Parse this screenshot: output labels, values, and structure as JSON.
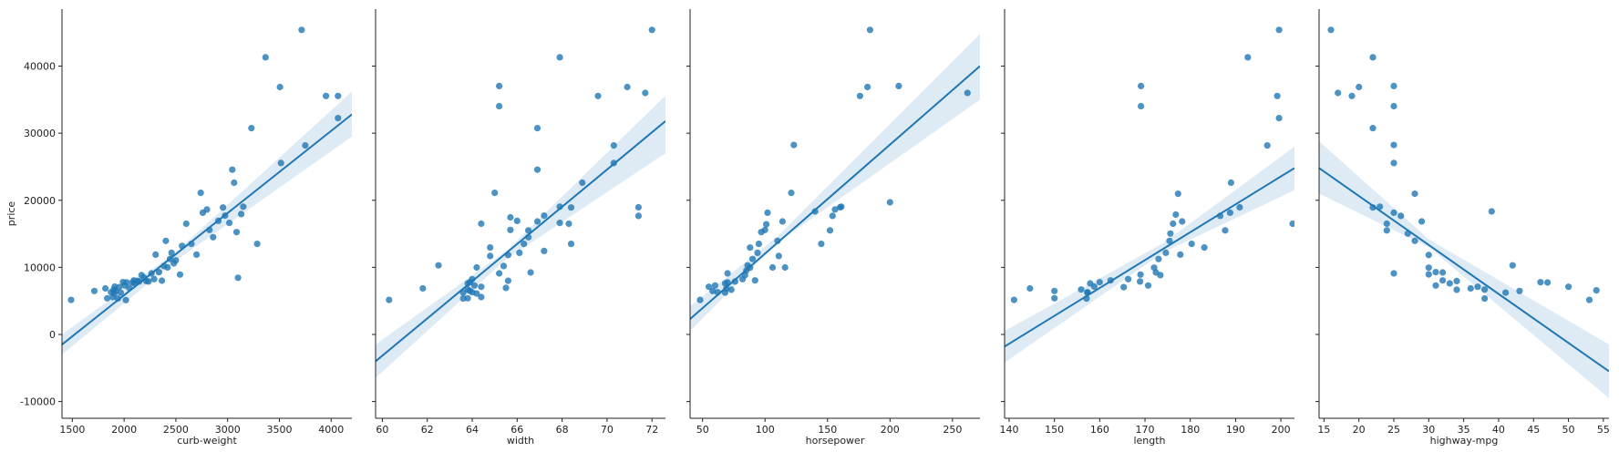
{
  "chart_data": [
    {
      "type": "scatter",
      "xlabel": "curb-weight",
      "ylabel": "price",
      "xlim": [
        1400,
        4200
      ],
      "ylim": [
        -12500,
        48500
      ],
      "xticks": [
        1500,
        2000,
        2500,
        3000,
        3500,
        4000
      ],
      "yticks": [
        -10000,
        0,
        10000,
        20000,
        30000,
        40000
      ],
      "regression": {
        "x": [
          1400,
          4200
        ],
        "y": [
          -1500,
          32800
        ]
      },
      "ci_band": {
        "x": [
          1400,
          2500,
          4200
        ],
        "lower": [
          -3000,
          11000,
          29500
        ],
        "upper": [
          0,
          12300,
          36200
        ]
      },
      "points": [
        [
          1488,
          5151
        ],
        [
          1713,
          6479
        ],
        [
          1819,
          6855
        ],
        [
          1837,
          5399
        ],
        [
          1874,
          6295
        ],
        [
          1890,
          5572
        ],
        [
          1900,
          6669
        ],
        [
          1905,
          6095
        ],
        [
          1909,
          7129
        ],
        [
          1918,
          6488
        ],
        [
          1940,
          5348
        ],
        [
          1951,
          7053
        ],
        [
          1967,
          6229
        ],
        [
          1989,
          7799
        ],
        [
          2004,
          7299
        ],
        [
          2017,
          5118
        ],
        [
          2024,
          7775
        ],
        [
          2050,
          6938
        ],
        [
          2081,
          7738
        ],
        [
          2094,
          8058
        ],
        [
          2100,
          7609
        ],
        [
          2128,
          7999
        ],
        [
          2145,
          7895
        ],
        [
          2169,
          8845
        ],
        [
          2191,
          8495
        ],
        [
          2212,
          7975
        ],
        [
          2236,
          7898
        ],
        [
          2265,
          9095
        ],
        [
          2290,
          8249
        ],
        [
          2304,
          11900
        ],
        [
          2337,
          9298
        ],
        [
          2365,
          8013
        ],
        [
          2385,
          10198
        ],
        [
          2403,
          13950
        ],
        [
          2420,
          9988
        ],
        [
          2443,
          11245
        ],
        [
          2458,
          12170
        ],
        [
          2480,
          10595
        ],
        [
          2500,
          11048
        ],
        [
          2540,
          8921
        ],
        [
          2560,
          13200
        ],
        [
          2600,
          16500
        ],
        [
          2650,
          13499
        ],
        [
          2700,
          11900
        ],
        [
          2740,
          21105
        ],
        [
          2760,
          18150
        ],
        [
          2800,
          18620
        ],
        [
          2825,
          15580
        ],
        [
          2860,
          14500
        ],
        [
          2910,
          16925
        ],
        [
          2955,
          18920
        ],
        [
          2975,
          17710
        ],
        [
          3017,
          16630
        ],
        [
          3045,
          24565
        ],
        [
          3062,
          22625
        ],
        [
          3086,
          15250
        ],
        [
          3100,
          8449
        ],
        [
          3131,
          17950
        ],
        [
          3151,
          19045
        ],
        [
          3230,
          30760
        ],
        [
          3285,
          13499
        ],
        [
          3366,
          41315
        ],
        [
          3505,
          36880
        ],
        [
          3515,
          25552
        ],
        [
          3715,
          45400
        ],
        [
          3750,
          28176
        ],
        [
          3950,
          35550
        ],
        [
          4066,
          32250
        ],
        [
          4066,
          35550
        ]
      ]
    },
    {
      "type": "scatter",
      "xlabel": "width",
      "ylabel": "",
      "xlim": [
        59.7,
        72.6
      ],
      "ylim": [
        -12500,
        48500
      ],
      "xticks": [
        60,
        62,
        64,
        66,
        68,
        70,
        72
      ],
      "yticks": [
        -10000,
        0,
        10000,
        20000,
        30000,
        40000
      ],
      "regression": {
        "x": [
          59.7,
          72.6
        ],
        "y": [
          -4000,
          31800
        ]
      },
      "ci_band": {
        "x": [
          59.7,
          65.5,
          72.6
        ],
        "lower": [
          -6500,
          11200,
          27000
        ],
        "upper": [
          -1500,
          12400,
          35600
        ]
      },
      "points": [
        [
          60.3,
          5151
        ],
        [
          61.8,
          6855
        ],
        [
          62.5,
          10295
        ],
        [
          63.6,
          5348
        ],
        [
          63.6,
          6229
        ],
        [
          63.8,
          5399
        ],
        [
          63.8,
          6692
        ],
        [
          63.8,
          7609
        ],
        [
          63.9,
          6488
        ],
        [
          63.9,
          7799
        ],
        [
          64.0,
          6295
        ],
        [
          64.0,
          8249
        ],
        [
          64.1,
          7295
        ],
        [
          64.2,
          6095
        ],
        [
          64.2,
          9980
        ],
        [
          64.4,
          5572
        ],
        [
          64.4,
          7099
        ],
        [
          64.4,
          16500
        ],
        [
          64.8,
          11694
        ],
        [
          64.8,
          12964
        ],
        [
          65.0,
          21105
        ],
        [
          65.2,
          34028
        ],
        [
          65.2,
          37028
        ],
        [
          65.2,
          9095
        ],
        [
          65.4,
          10198
        ],
        [
          65.5,
          6938
        ],
        [
          65.6,
          7999
        ],
        [
          65.6,
          11850
        ],
        [
          65.7,
          17450
        ],
        [
          65.7,
          15580
        ],
        [
          66.0,
          16925
        ],
        [
          66.1,
          12170
        ],
        [
          66.3,
          13499
        ],
        [
          66.5,
          15510
        ],
        [
          66.5,
          14489
        ],
        [
          66.6,
          9233
        ],
        [
          66.9,
          16845
        ],
        [
          66.9,
          24565
        ],
        [
          66.9,
          30760
        ],
        [
          67.2,
          12440
        ],
        [
          67.2,
          17710
        ],
        [
          67.9,
          16630
        ],
        [
          67.9,
          19045
        ],
        [
          67.9,
          41315
        ],
        [
          68.3,
          16500
        ],
        [
          68.4,
          18920
        ],
        [
          68.4,
          13499
        ],
        [
          68.9,
          22625
        ],
        [
          69.6,
          35550
        ],
        [
          70.3,
          25552
        ],
        [
          70.3,
          28176
        ],
        [
          70.9,
          36880
        ],
        [
          71.4,
          17669
        ],
        [
          71.4,
          18950
        ],
        [
          71.7,
          36000
        ],
        [
          72.0,
          45400
        ]
      ]
    },
    {
      "type": "scatter",
      "xlabel": "horsepower",
      "ylabel": "",
      "xlim": [
        40,
        272
      ],
      "ylim": [
        -12500,
        48500
      ],
      "xticks": [
        50,
        100,
        150,
        200,
        250
      ],
      "yticks": [
        -10000,
        0,
        10000,
        20000,
        30000,
        40000
      ],
      "regression": {
        "x": [
          40,
          272
        ],
        "y": [
          2300,
          40000
        ]
      },
      "ci_band": {
        "x": [
          40,
          110,
          272
        ],
        "lower": [
          500,
          13700,
          35000
        ],
        "upper": [
          4200,
          14600,
          44800
        ]
      },
      "points": [
        [
          48,
          5151
        ],
        [
          55,
          7099
        ],
        [
          58,
          6479
        ],
        [
          60,
          7295
        ],
        [
          62,
          6295
        ],
        [
          68,
          6229
        ],
        [
          68,
          7609
        ],
        [
          69,
          6855
        ],
        [
          70,
          7775
        ],
        [
          70,
          9095
        ],
        [
          73,
          6669
        ],
        [
          76,
          7895
        ],
        [
          82,
          8249
        ],
        [
          84,
          8845
        ],
        [
          85,
          9538
        ],
        [
          86,
          10295
        ],
        [
          88,
          9960
        ],
        [
          88,
          12945
        ],
        [
          90,
          11245
        ],
        [
          92,
          8058
        ],
        [
          94,
          12170
        ],
        [
          95,
          13499
        ],
        [
          97,
          15250
        ],
        [
          100,
          15580
        ],
        [
          101,
          16430
        ],
        [
          102,
          18150
        ],
        [
          106,
          9988
        ],
        [
          110,
          13950
        ],
        [
          111,
          11694
        ],
        [
          114,
          16845
        ],
        [
          116,
          9989
        ],
        [
          121,
          21105
        ],
        [
          123,
          28248
        ],
        [
          140,
          18344
        ],
        [
          145,
          13499
        ],
        [
          152,
          15510
        ],
        [
          154,
          17669
        ],
        [
          156,
          18620
        ],
        [
          160,
          18950
        ],
        [
          161,
          19045
        ],
        [
          176,
          35550
        ],
        [
          182,
          36880
        ],
        [
          184,
          45400
        ],
        [
          200,
          19699
        ],
        [
          207,
          37028
        ],
        [
          262,
          36000
        ]
      ]
    },
    {
      "type": "scatter",
      "xlabel": "length",
      "ylabel": "",
      "xlim": [
        139,
        203
      ],
      "ylim": [
        -12500,
        48500
      ],
      "xticks": [
        140,
        150,
        160,
        170,
        180,
        190,
        200
      ],
      "yticks": [
        -10000,
        0,
        10000,
        20000,
        30000,
        40000
      ],
      "regression": {
        "x": [
          139,
          203
        ],
        "y": [
          -1800,
          24800
        ]
      },
      "ci_band": {
        "x": [
          139,
          174,
          203
        ],
        "lower": [
          -4200,
          12200,
          21500
        ],
        "upper": [
          500,
          13600,
          28000
        ]
      },
      "points": [
        [
          141.1,
          5151
        ],
        [
          144.6,
          6855
        ],
        [
          150.0,
          5399
        ],
        [
          150.0,
          6479
        ],
        [
          155.9,
          6692
        ],
        [
          157.1,
          5348
        ],
        [
          157.3,
          6229
        ],
        [
          157.3,
          6295
        ],
        [
          157.9,
          7609
        ],
        [
          158.8,
          7129
        ],
        [
          160.0,
          7799
        ],
        [
          162.4,
          8058
        ],
        [
          165.3,
          7053
        ],
        [
          166.3,
          8249
        ],
        [
          168.9,
          7898
        ],
        [
          169.0,
          8921
        ],
        [
          169.1,
          37028
        ],
        [
          169.1,
          34028
        ],
        [
          170.7,
          7295
        ],
        [
          172.0,
          9960
        ],
        [
          172.4,
          9233
        ],
        [
          173.0,
          11245
        ],
        [
          173.4,
          8845
        ],
        [
          174.6,
          12170
        ],
        [
          175.4,
          13950
        ],
        [
          175.6,
          15040
        ],
        [
          176.2,
          16500
        ],
        [
          176.8,
          17859
        ],
        [
          177.3,
          20970
        ],
        [
          177.8,
          11900
        ],
        [
          178.2,
          16845
        ],
        [
          180.3,
          13499
        ],
        [
          183.1,
          12964
        ],
        [
          186.6,
          17669
        ],
        [
          187.7,
          15510
        ],
        [
          188.8,
          18150
        ],
        [
          189.0,
          22625
        ],
        [
          190.9,
          18950
        ],
        [
          192.7,
          41315
        ],
        [
          197.0,
          28176
        ],
        [
          199.2,
          35550
        ],
        [
          199.6,
          45400
        ],
        [
          199.6,
          32250
        ],
        [
          202.6,
          16500
        ]
      ]
    },
    {
      "type": "scatter",
      "xlabel": "highway-mpg",
      "ylabel": "",
      "xlim": [
        14.3,
        55.8
      ],
      "ylim": [
        -12500,
        48500
      ],
      "xticks": [
        15,
        20,
        25,
        30,
        35,
        40,
        45,
        50,
        55
      ],
      "yticks": [
        -10000,
        0,
        10000,
        20000,
        30000,
        40000
      ],
      "regression": {
        "x": [
          14.3,
          55.8
        ],
        "y": [
          24800,
          -5500
        ]
      },
      "ci_band": {
        "x": [
          14.3,
          30,
          55.8
        ],
        "lower": [
          21000,
          13000,
          -9500
        ],
        "upper": [
          28800,
          14200,
          -1500
        ]
      },
      "points": [
        [
          16,
          45400
        ],
        [
          17,
          36000
        ],
        [
          19,
          35550
        ],
        [
          20,
          36880
        ],
        [
          22,
          41315
        ],
        [
          22,
          30760
        ],
        [
          22,
          18920
        ],
        [
          23,
          19045
        ],
        [
          24,
          16500
        ],
        [
          24,
          15510
        ],
        [
          25,
          28248
        ],
        [
          25,
          34028
        ],
        [
          25,
          37028
        ],
        [
          25,
          25552
        ],
        [
          25,
          18150
        ],
        [
          25,
          9095
        ],
        [
          26,
          17669
        ],
        [
          27,
          15040
        ],
        [
          28,
          20970
        ],
        [
          28,
          13950
        ],
        [
          29,
          16845
        ],
        [
          30,
          11850
        ],
        [
          30,
          9960
        ],
        [
          30,
          8948
        ],
        [
          31,
          9295
        ],
        [
          31,
          7295
        ],
        [
          32,
          9233
        ],
        [
          32,
          8058
        ],
        [
          33,
          7609
        ],
        [
          34,
          6669
        ],
        [
          34,
          7957
        ],
        [
          36,
          6855
        ],
        [
          37,
          7099
        ],
        [
          38,
          6692
        ],
        [
          38,
          5348
        ],
        [
          39,
          18344
        ],
        [
          41,
          6229
        ],
        [
          42,
          10295
        ],
        [
          43,
          6479
        ],
        [
          46,
          7788
        ],
        [
          47,
          7738
        ],
        [
          50,
          7099
        ],
        [
          53,
          5151
        ],
        [
          54,
          6575
        ]
      ]
    }
  ]
}
